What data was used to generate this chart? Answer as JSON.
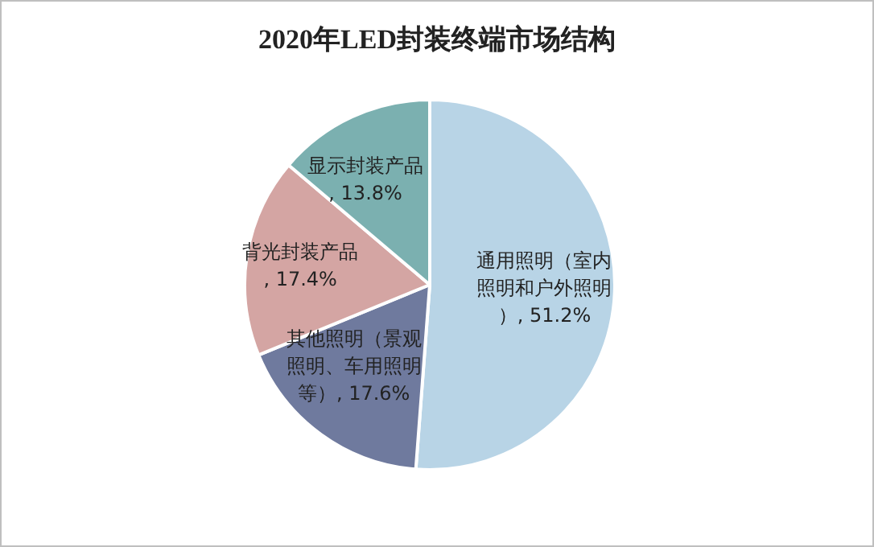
{
  "chart_data": {
    "type": "pie",
    "title": "2020年LED封装终端市场结构",
    "categories": [
      "通用照明（室内照明和户外照明）",
      "其他照明（景观照明、车用照明等）",
      "背光封装产品",
      "显示封装产品"
    ],
    "values": [
      51.2,
      17.6,
      17.4,
      13.8
    ],
    "colors": [
      "#b8d4e6",
      "#6f7a9e",
      "#d4a5a3",
      "#7bb0b0"
    ],
    "value_labels": [
      ", 51.2%",
      ", 17.6%",
      ", 17.4%",
      ", 13.8%"
    ],
    "legend": false
  }
}
